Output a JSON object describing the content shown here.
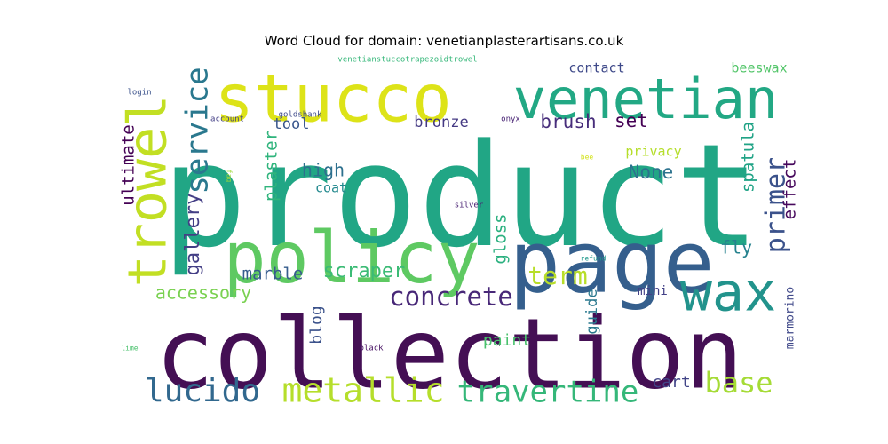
{
  "chart_data": {
    "type": "wordcloud",
    "title": "Word Cloud for domain: venetianplasterartisans.co.uk",
    "words": [
      {
        "text": "product",
        "weight": 100,
        "color": "#21a685"
      },
      {
        "text": "collection",
        "weight": 88,
        "color": "#440f54"
      },
      {
        "text": "page",
        "weight": 66,
        "color": "#355f8d"
      },
      {
        "text": "policy",
        "weight": 58,
        "color": "#5ec962"
      },
      {
        "text": "stucco",
        "weight": 55,
        "color": "#dde318"
      },
      {
        "text": "venetian",
        "weight": 47,
        "color": "#22a884"
      },
      {
        "text": "trowel",
        "weight": 46,
        "color": "#c2df23"
      },
      {
        "text": "wax",
        "weight": 44,
        "color": "#22938c"
      },
      {
        "text": "service",
        "weight": 27,
        "color": "#2a788e"
      },
      {
        "text": "metallic",
        "weight": 27,
        "color": "#b5de2b"
      },
      {
        "text": "lucido",
        "weight": 25,
        "color": "#31688e"
      },
      {
        "text": "travertine",
        "weight": 23,
        "color": "#35b779"
      },
      {
        "text": "concrete",
        "weight": 21,
        "color": "#482878"
      },
      {
        "text": "base",
        "weight": 22,
        "color": "#a5db36"
      },
      {
        "text": "primer",
        "weight": 21,
        "color": "#3b528b"
      },
      {
        "text": "term",
        "weight": 19,
        "color": "#b8de29"
      },
      {
        "text": "gallery",
        "weight": 16,
        "color": "#433e85"
      },
      {
        "text": "scraper",
        "weight": 16,
        "color": "#3bbb75"
      },
      {
        "text": "set",
        "weight": 16,
        "color": "#440154"
      },
      {
        "text": "brush",
        "weight": 15,
        "color": "#472d7b"
      },
      {
        "text": "high",
        "weight": 15,
        "color": "#2d708e"
      },
      {
        "text": "None",
        "weight": 15,
        "color": "#2c728e"
      },
      {
        "text": "ultimate",
        "weight": 14,
        "color": "#440154"
      },
      {
        "text": "plaster",
        "weight": 14,
        "color": "#2fb47c"
      },
      {
        "text": "spatula",
        "weight": 14,
        "color": "#20a386"
      },
      {
        "text": "accessory",
        "weight": 14,
        "color": "#7ad151"
      },
      {
        "text": "marble",
        "weight": 14,
        "color": "#365c8d"
      },
      {
        "text": "gloss",
        "weight": 14,
        "color": "#2ab07f"
      },
      {
        "text": "effect",
        "weight": 14,
        "color": "#46085c"
      },
      {
        "text": "fly",
        "weight": 14,
        "color": "#26828e"
      },
      {
        "text": "paint",
        "weight": 13,
        "color": "#4ac16d"
      },
      {
        "text": "blog",
        "weight": 13,
        "color": "#3b528b"
      },
      {
        "text": "cart",
        "weight": 13,
        "color": "#414487"
      },
      {
        "text": "guide",
        "weight": 12,
        "color": "#2a788e"
      },
      {
        "text": "bronze",
        "weight": 11,
        "color": "#443983"
      },
      {
        "text": "tool",
        "weight": 11,
        "color": "#39568c"
      },
      {
        "text": "coat",
        "weight": 10,
        "color": "#23898e"
      },
      {
        "text": "contact",
        "weight": 10,
        "color": "#3e4989"
      },
      {
        "text": "beeswax",
        "weight": 10,
        "color": "#52c569"
      },
      {
        "text": "privacy",
        "weight": 10,
        "color": "#b5de2b"
      },
      {
        "text": "mini",
        "weight": 9,
        "color": "#424086"
      },
      {
        "text": "marmorino",
        "weight": 8,
        "color": "#3f4889"
      },
      {
        "text": "goldshank",
        "weight": 5,
        "color": "#3e4a89"
      },
      {
        "text": "venetianstuccotrapezoidtrowel",
        "weight": 5,
        "color": "#35b779"
      },
      {
        "text": "login",
        "weight": 5,
        "color": "#3b528b"
      },
      {
        "text": "account",
        "weight": 5,
        "color": "#433e85"
      },
      {
        "text": "onyx",
        "weight": 5,
        "color": "#482374"
      },
      {
        "text": "silver",
        "weight": 5,
        "color": "#482173"
      },
      {
        "text": "faq",
        "weight": 4,
        "color": "#9fda3a"
      },
      {
        "text": "bee",
        "weight": 4,
        "color": "#d2e21b"
      },
      {
        "text": "refund",
        "weight": 4,
        "color": "#1f988b"
      },
      {
        "text": "lime",
        "weight": 4,
        "color": "#4ac16d"
      },
      {
        "text": "black",
        "weight": 5,
        "color": "#471063"
      }
    ]
  }
}
